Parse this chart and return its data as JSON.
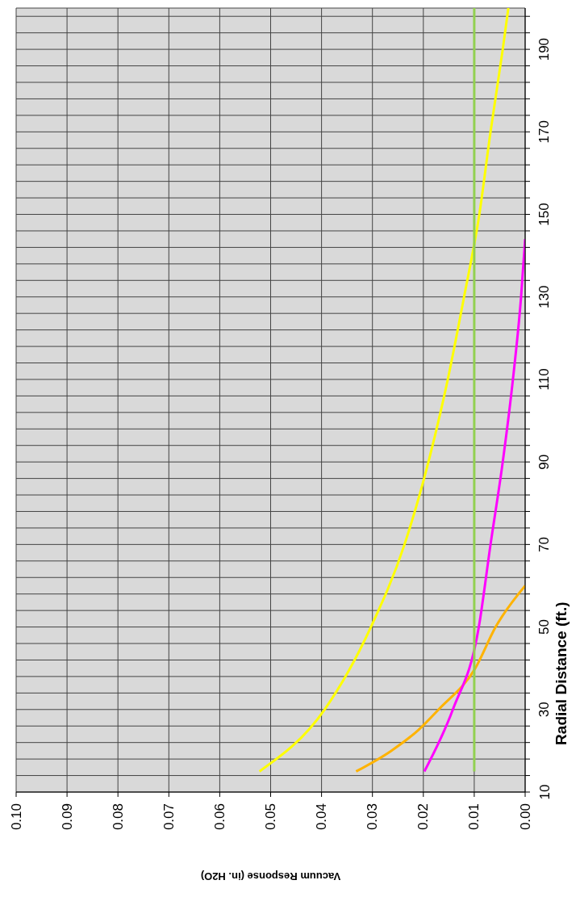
{
  "chart_data": {
    "type": "line",
    "xlabel": "Vacuum Response (in. H2O)",
    "ylabel": "Radial Distance (ft.)",
    "xlim": [
      0.1,
      0
    ],
    "ylim": [
      10,
      200
    ],
    "xticks": [
      {
        "value": 0.1,
        "label": "0.10"
      },
      {
        "value": 0.09,
        "label": "0.09"
      },
      {
        "value": 0.08,
        "label": "0.08"
      },
      {
        "value": 0.07,
        "label": "0.07"
      },
      {
        "value": 0.06,
        "label": "0.06"
      },
      {
        "value": 0.05,
        "label": "0.05"
      },
      {
        "value": 0.04,
        "label": "0.04"
      },
      {
        "value": 0.03,
        "label": "0.03"
      },
      {
        "value": 0.02,
        "label": "0.02"
      },
      {
        "value": 0.01,
        "label": "0.01"
      },
      {
        "value": 0,
        "label": "0.00"
      }
    ],
    "yticks": [
      10,
      {
        "value": 14,
        "label": null
      },
      {
        "value": 18,
        "label": null
      },
      {
        "value": 22,
        "label": null
      },
      {
        "value": 26,
        "label": null
      },
      30,
      {
        "value": 34,
        "label": null
      },
      {
        "value": 38,
        "label": null
      },
      {
        "value": 42,
        "label": null
      },
      {
        "value": 46,
        "label": null
      },
      50,
      {
        "value": 54,
        "label": null
      },
      {
        "value": 58,
        "label": null
      },
      {
        "value": 62,
        "label": null
      },
      {
        "value": 66,
        "label": null
      },
      70,
      {
        "value": 74,
        "label": null
      },
      {
        "value": 78,
        "label": null
      },
      {
        "value": 82,
        "label": null
      },
      {
        "value": 86,
        "label": null
      },
      90,
      {
        "value": 94,
        "label": null
      },
      {
        "value": 98,
        "label": null
      },
      {
        "value": 102,
        "label": null
      },
      {
        "value": 106,
        "label": null
      },
      110,
      {
        "value": 114,
        "label": null
      },
      {
        "value": 118,
        "label": null
      },
      {
        "value": 122,
        "label": null
      },
      {
        "value": 126,
        "label": null
      },
      130,
      {
        "value": 134,
        "label": null
      },
      {
        "value": 138,
        "label": null
      },
      {
        "value": 142,
        "label": null
      },
      {
        "value": 146,
        "label": null
      },
      150,
      {
        "value": 154,
        "label": null
      },
      {
        "value": 158,
        "label": null
      },
      {
        "value": 162,
        "label": null
      },
      {
        "value": 166,
        "label": null
      },
      170,
      {
        "value": 174,
        "label": null
      },
      {
        "value": 178,
        "label": null
      },
      {
        "value": 182,
        "label": null
      },
      {
        "value": 186,
        "label": null
      },
      190,
      {
        "value": 194,
        "label": null
      },
      {
        "value": 198,
        "label": null
      }
    ],
    "grid": true,
    "series": [
      {
        "color": "#ffff00",
        "x": [
          0.0522,
          0.0394,
          0.0303,
          0.0237,
          0.019,
          0.0152,
          0.012,
          0.009,
          0.0068,
          0.0044,
          0.0033
        ],
        "values": [
          15,
          30,
          50,
          70,
          90,
          110,
          130,
          150,
          170,
          190,
          200
        ]
      },
      {
        "color": "#ffb300",
        "x": [
          0.0332,
          0.0263,
          0.021,
          0.017,
          0.0098,
          0.0058,
          0
        ],
        "values": [
          15,
          20,
          25,
          30,
          40,
          50,
          60
        ]
      },
      {
        "color": "#ff00ff",
        "x": [
          0.0198,
          0.0142,
          0.0091,
          0.0068,
          0.0044,
          0.0024,
          0.0008,
          0
        ],
        "values": [
          15,
          30,
          50,
          70,
          90,
          110,
          130,
          144
        ]
      },
      {
        "color": "#92d050",
        "x": [
          0.01,
          0.01
        ],
        "values": [
          15,
          200
        ]
      }
    ]
  }
}
